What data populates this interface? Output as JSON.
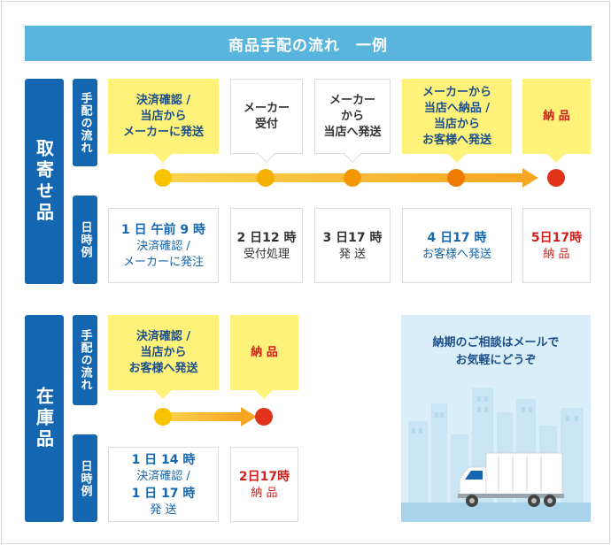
{
  "title": "商品手配の流れ　一例",
  "sections": [
    {
      "label": "取寄せ品",
      "flow_label": "手配の流れ",
      "time_label": "日時例",
      "steps": [
        {
          "text": "決済確認 /\n当店から\nメーカーに発送",
          "style": "yellow",
          "dot_color": "#f8c200"
        },
        {
          "text": "メーカー\n受付",
          "style": "white",
          "dot_color": "#f6b100"
        },
        {
          "text": "メーカー\nから\n当店へ発送",
          "style": "white",
          "dot_color": "#f29700"
        },
        {
          "text": "メーカーから\n当店へ納品 /\n当店から\nお客様へ発送",
          "style": "yellow",
          "dot_color": "#ee7a00"
        },
        {
          "text": "納 品",
          "style": "final",
          "dot_color": "#e0331a"
        }
      ],
      "times": [
        {
          "time": "1 日 午前 9 時",
          "desc": "決済確認 /\nメーカーに発注",
          "style": "blue"
        },
        {
          "time": "2 日12 時",
          "desc": "受付処理",
          "style": "dark"
        },
        {
          "time": "3 日17 時",
          "desc": "発 送",
          "style": "dark"
        },
        {
          "time": "4 日17 時",
          "desc": "お客様へ発送",
          "style": "blue"
        },
        {
          "time": "5日17時",
          "desc": "納 品",
          "style": "final"
        }
      ]
    },
    {
      "label": "在庫品",
      "flow_label": "手配の流れ",
      "time_label": "日時例",
      "steps": [
        {
          "text": "決済確認 /\n当店から\nお客様へ発送",
          "style": "yellow",
          "dot_color": "#f8c200"
        },
        {
          "text": "納 品",
          "style": "final",
          "dot_color": "#e0331a"
        }
      ],
      "times": [
        {
          "time": "1 日 14 時",
          "desc": "決済確認 /",
          "time2": "1 日 17 時",
          "desc2": "発 送",
          "style": "blue"
        },
        {
          "time": "2日17時",
          "desc": "納 品",
          "style": "final"
        }
      ]
    }
  ],
  "contact": {
    "text": "納期のご相談はメールで\nお気軽にどうぞ"
  },
  "colors": {
    "primary_blue": "#1466b0",
    "title_blue": "#5ab5dd",
    "highlight_yellow": "#fff27a",
    "final_red": "#d0201b",
    "arrow_start": "#fbd24e",
    "arrow_end": "#f5a623",
    "panel_bg": "#d9eef9"
  }
}
